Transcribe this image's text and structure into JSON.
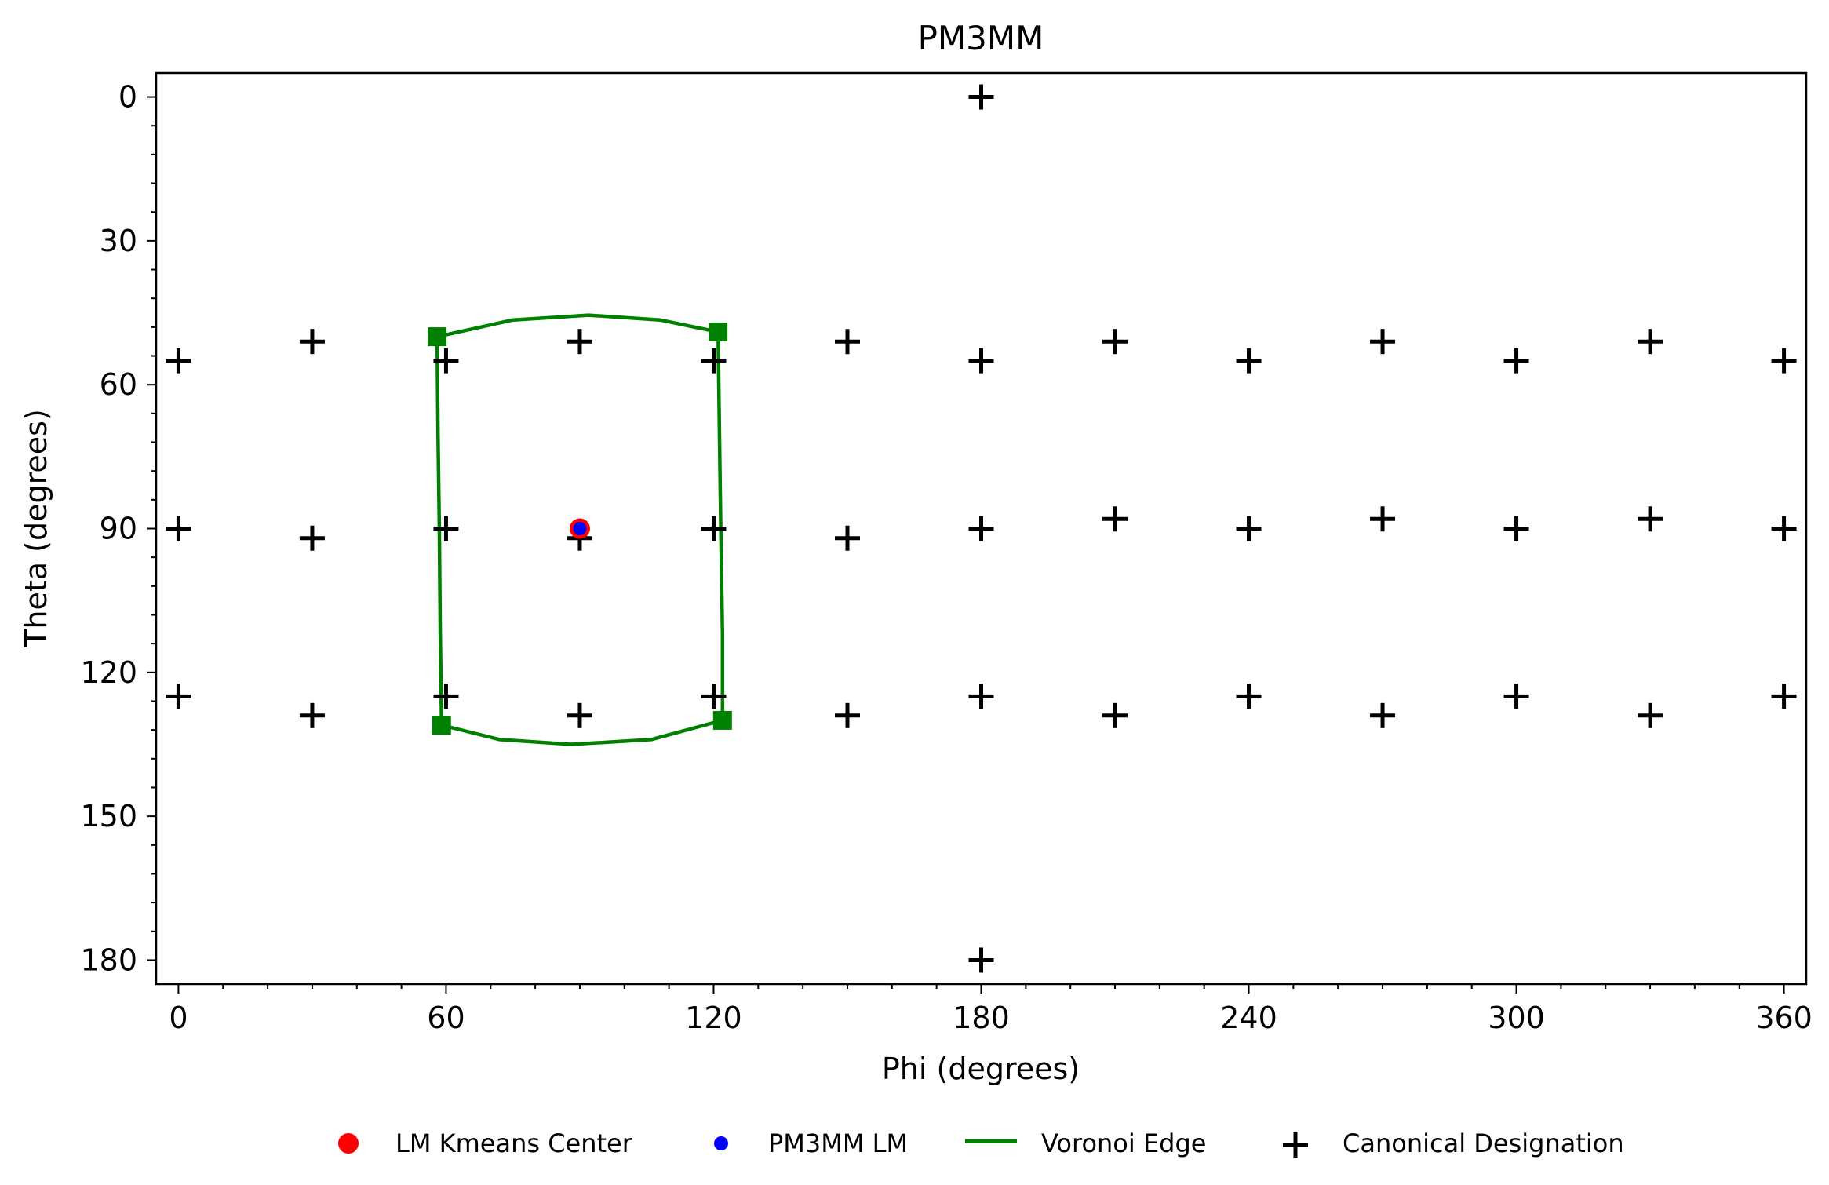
{
  "chart_data": {
    "type": "scatter",
    "title": "PM3MM",
    "xlabel": "Phi (degrees)",
    "ylabel": "Theta (degrees)",
    "xlim": [
      -5,
      365
    ],
    "ylim": [
      185,
      -5
    ],
    "y_inverted": true,
    "grid": false,
    "legend_position": "bottom-center",
    "x_ticks": [
      0,
      60,
      120,
      180,
      240,
      300,
      360
    ],
    "y_ticks": [
      0,
      30,
      60,
      90,
      120,
      150,
      180
    ],
    "colors": {
      "kmeans": "#ff0000",
      "pm3mm": "#0000ff",
      "voronoi": "#008000",
      "canonical": "#000000"
    },
    "series": [
      {
        "name": "LM Kmeans Center",
        "marker": "circle",
        "color": "#ff0000",
        "points": [
          [
            90,
            90
          ]
        ]
      },
      {
        "name": "PM3MM LM",
        "marker": "circle",
        "color": "#0000ff",
        "points": [
          [
            90,
            90
          ]
        ]
      },
      {
        "name": "Voronoi Edge",
        "marker": "square-line",
        "color": "#008000",
        "segments": [
          [
            [
              58,
              50
            ],
            [
              75,
              46.5
            ],
            [
              92,
              45.5
            ],
            [
              108,
              46.5
            ],
            [
              121,
              49
            ]
          ],
          [
            [
              121,
              49
            ],
            [
              121.3,
              70
            ],
            [
              121.6,
              90
            ],
            [
              122,
              112
            ],
            [
              122,
              130
            ]
          ],
          [
            [
              122,
              130
            ],
            [
              106,
              134
            ],
            [
              88,
              135
            ],
            [
              72,
              134
            ],
            [
              59,
              131
            ]
          ],
          [
            [
              59,
              131
            ],
            [
              58.7,
              112
            ],
            [
              58.5,
              90
            ],
            [
              58.2,
              70
            ],
            [
              58,
              50
            ]
          ]
        ],
        "vertices": [
          [
            58,
            50
          ],
          [
            121,
            49
          ],
          [
            122,
            130
          ],
          [
            59,
            131
          ]
        ]
      },
      {
        "name": "Canonical Designation",
        "marker": "plus",
        "color": "#000000",
        "points": [
          [
            180,
            0
          ],
          [
            180,
            180
          ],
          [
            0,
            55
          ],
          [
            30,
            51
          ],
          [
            60,
            55
          ],
          [
            90,
            51
          ],
          [
            120,
            55
          ],
          [
            150,
            51
          ],
          [
            180,
            55
          ],
          [
            210,
            51
          ],
          [
            240,
            55
          ],
          [
            270,
            51
          ],
          [
            300,
            55
          ],
          [
            330,
            51
          ],
          [
            360,
            55
          ],
          [
            0,
            90
          ],
          [
            30,
            92
          ],
          [
            60,
            90
          ],
          [
            90,
            92
          ],
          [
            120,
            90
          ],
          [
            150,
            92
          ],
          [
            180,
            90
          ],
          [
            210,
            88
          ],
          [
            240,
            90
          ],
          [
            270,
            88
          ],
          [
            300,
            90
          ],
          [
            330,
            88
          ],
          [
            360,
            90
          ],
          [
            0,
            125
          ],
          [
            30,
            129
          ],
          [
            60,
            125
          ],
          [
            90,
            129
          ],
          [
            120,
            125
          ],
          [
            150,
            129
          ],
          [
            180,
            125
          ],
          [
            210,
            129
          ],
          [
            240,
            125
          ],
          [
            270,
            129
          ],
          [
            300,
            125
          ],
          [
            330,
            129
          ],
          [
            360,
            125
          ]
        ]
      }
    ]
  }
}
